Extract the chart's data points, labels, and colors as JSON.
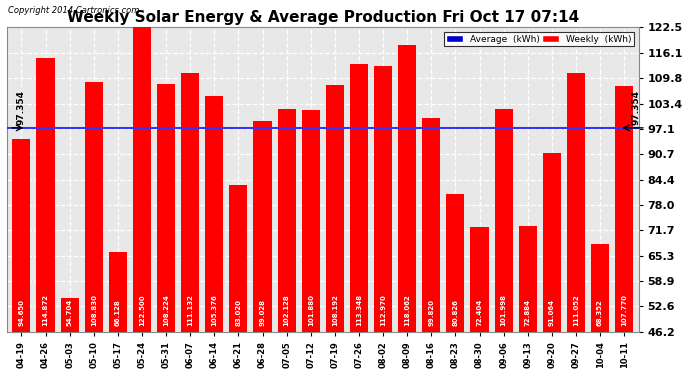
{
  "title": "Weekly Solar Energy & Average Production Fri Oct 17 07:14",
  "copyright": "Copyright 2014 Cartronics.com",
  "categories": [
    "04-19",
    "04-26",
    "05-03",
    "05-10",
    "05-17",
    "05-24",
    "05-31",
    "06-07",
    "06-14",
    "06-21",
    "06-28",
    "07-05",
    "07-12",
    "07-19",
    "07-26",
    "08-02",
    "08-09",
    "08-16",
    "08-23",
    "08-30",
    "09-06",
    "09-13",
    "09-20",
    "09-27",
    "10-04",
    "10-11"
  ],
  "values": [
    94.65,
    114.872,
    54.704,
    108.83,
    66.128,
    122.5,
    108.224,
    111.132,
    105.376,
    83.02,
    99.028,
    102.128,
    101.88,
    108.192,
    113.348,
    112.97,
    118.062,
    99.82,
    80.826,
    72.404,
    101.998,
    72.884,
    91.064,
    111.052,
    68.352,
    107.77
  ],
  "average": 97.354,
  "ylim_min": 46.2,
  "ylim_max": 122.5,
  "yticks": [
    46.2,
    52.6,
    58.9,
    65.3,
    71.7,
    78.0,
    84.4,
    90.7,
    97.1,
    103.4,
    109.8,
    116.1,
    122.5
  ],
  "bar_color": "#FF0000",
  "avg_line_color": "#3333FF",
  "background_color": "#FFFFFF",
  "plot_bg_color": "#E8E8E8",
  "bar_label_color": "#FFFFFF",
  "avg_label": "97.354",
  "legend_avg_color": "#0000CC",
  "legend_weekly_color": "#FF0000",
  "title_fontsize": 11,
  "ytick_fontsize": 8,
  "xtick_fontsize": 6,
  "bar_label_fontsize": 5
}
